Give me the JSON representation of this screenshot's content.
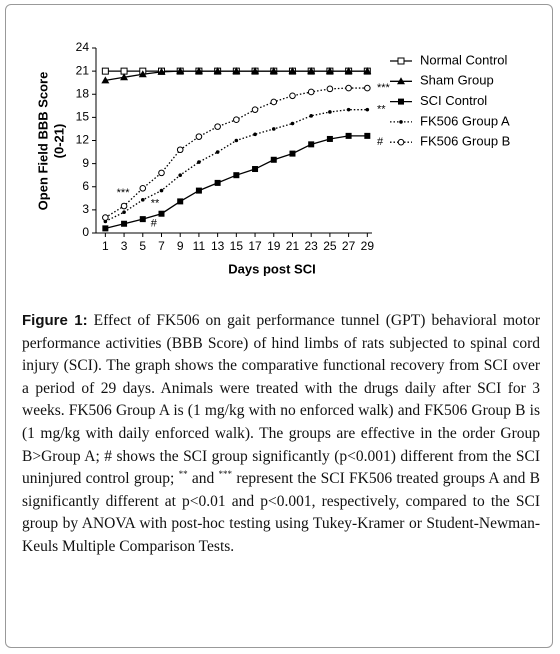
{
  "chart_data": {
    "type": "line",
    "xlabel": "Days post SCI",
    "ylabel": [
      "Open Field BBB Score",
      "(0-21)"
    ],
    "x": [
      1,
      3,
      5,
      7,
      9,
      11,
      13,
      15,
      17,
      19,
      21,
      23,
      25,
      27,
      29
    ],
    "xlim": [
      0,
      29.5
    ],
    "xticks": [
      1,
      3,
      5,
      7,
      9,
      11,
      13,
      15,
      17,
      19,
      21,
      23,
      25,
      27,
      29
    ],
    "ylim": [
      0,
      24
    ],
    "yticks": [
      0,
      3,
      6,
      9,
      12,
      15,
      18,
      21,
      24
    ],
    "legend": "upper right",
    "series": [
      {
        "name": "Normal Control",
        "color": "#000000",
        "marker": "open-square",
        "dash": "solid",
        "values": [
          21,
          21,
          21,
          21,
          21,
          21,
          21,
          21,
          21,
          21,
          21,
          21,
          21,
          21,
          21
        ]
      },
      {
        "name": "Sham Group",
        "color": "#000000",
        "marker": "triangle",
        "dash": "solid",
        "values": [
          19.8,
          20.2,
          20.6,
          20.9,
          21,
          21,
          21,
          21,
          21,
          21,
          21,
          21,
          21,
          21,
          21
        ]
      },
      {
        "name": "SCI Control",
        "color": "#000000",
        "marker": "square",
        "dash": "solid",
        "values": [
          0.6,
          1.2,
          1.8,
          2.5,
          4.1,
          5.5,
          6.5,
          7.5,
          8.3,
          9.5,
          10.3,
          11.5,
          12.2,
          12.6,
          12.6
        ]
      },
      {
        "name": "FK506 Group A",
        "color": "#000000",
        "marker": "dot",
        "dash": "dotted",
        "values": [
          1.5,
          2.7,
          4.3,
          5.5,
          7.5,
          9.2,
          10.5,
          12,
          12.8,
          13.5,
          14.2,
          15.2,
          15.7,
          16,
          16
        ]
      },
      {
        "name": "FK506 Group B",
        "color": "#000000",
        "marker": "circle",
        "dash": "dotted",
        "values": [
          2,
          3.5,
          5.8,
          7.8,
          10.8,
          12.5,
          13.8,
          14.7,
          16,
          17,
          17.8,
          18.3,
          18.7,
          18.8,
          18.8
        ]
      }
    ],
    "annotations": [
      "***",
      "**",
      "#",
      "***",
      "**",
      "#"
    ]
  },
  "caption": {
    "label": "Figure 1:",
    "text_1": " Effect of FK506 on gait performance tunnel (GPT) behavioral motor performance activities (BBB Score) of hind limbs of rats subjected to spinal cord injury (SCI). The graph shows the comparative functional recovery from SCI over a period of 29 days. Animals were treated with the drugs daily after SCI for 3 weeks. FK506 Group A is (1 mg/kg with no enforced walk) and FK506 Group B is (1 mg/kg with daily enforced walk). The groups are effective in the order Group B>Group A; # shows the SCI group significantly (p<0.001) different from the SCI uninjured control group; ",
    "sup_1": "**",
    "text_2": " and ",
    "sup_2": "***",
    "text_3": " represent the SCI FK506 treated groups A and B significantly different at p<0.01 and p<0.001, respectively, compared to the SCI group by ANOVA with post-hoc testing using Tukey-Kramer or Student-Newman-Keuls Multiple Comparison Tests."
  }
}
